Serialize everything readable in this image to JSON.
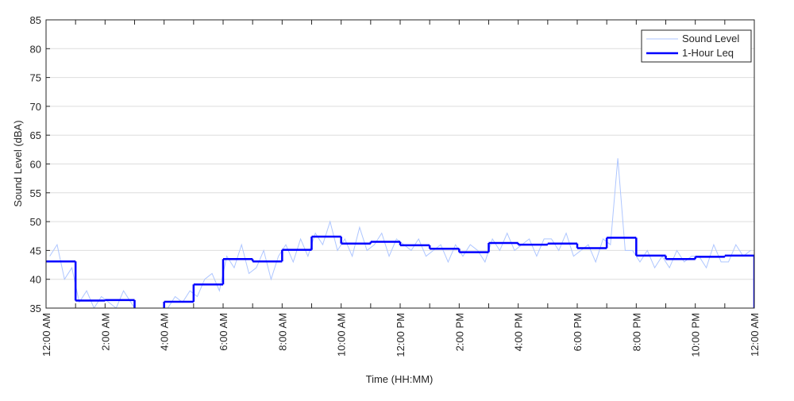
{
  "chart_data": {
    "type": "line",
    "title": "",
    "xlabel": "Time (HH:MM)",
    "ylabel": "Sound Level (dBA)",
    "xlim_hours": [
      0,
      24
    ],
    "ylim": [
      35,
      85
    ],
    "yticks": [
      35,
      40,
      45,
      50,
      55,
      60,
      65,
      70,
      75,
      80,
      85
    ],
    "xtick_labels": [
      "12:00 AM",
      "2:00 AM",
      "4:00 AM",
      "6:00 AM",
      "8:00 AM",
      "10:00 AM",
      "12:00 PM",
      "2:00 PM",
      "4:00 PM",
      "6:00 PM",
      "8:00 PM",
      "10:00 PM",
      "12:00 AM"
    ],
    "grid": true,
    "legend_position": "top-right",
    "series": [
      {
        "name": "Sound Level",
        "color": "#aec6ff",
        "interval_minutes": 15,
        "values": [
          44,
          46,
          40,
          42,
          36,
          38,
          35,
          37,
          36,
          35,
          38,
          36,
          34,
          33,
          34,
          33,
          35,
          37,
          36,
          38,
          37,
          40,
          41,
          38,
          44,
          42,
          46,
          41,
          42,
          45,
          40,
          44,
          46,
          43,
          47,
          44,
          48,
          46,
          50,
          45,
          47,
          44,
          49,
          45,
          46,
          48,
          44,
          47,
          46,
          45,
          47,
          44,
          45,
          46,
          43,
          46,
          44,
          46,
          45,
          43,
          47,
          45,
          48,
          45,
          46,
          47,
          44,
          47,
          47,
          45,
          48,
          44,
          45,
          46,
          43,
          47,
          46,
          61,
          45,
          45,
          43,
          45,
          42,
          44,
          42,
          45,
          43,
          44,
          44,
          42,
          46,
          43,
          43,
          46,
          44,
          45
        ]
      },
      {
        "name": "1-Hour Leq",
        "color": "#0000ff",
        "interval_minutes": 60,
        "values": [
          43.1,
          36.3,
          36.4,
          null,
          36.1,
          39.1,
          43.5,
          43.1,
          45.1,
          47.4,
          46.2,
          46.5,
          45.9,
          45.3,
          44.7,
          46.3,
          46.0,
          46.2,
          45.4,
          47.2,
          44.1,
          43.5,
          43.9,
          44.1
        ]
      }
    ]
  }
}
